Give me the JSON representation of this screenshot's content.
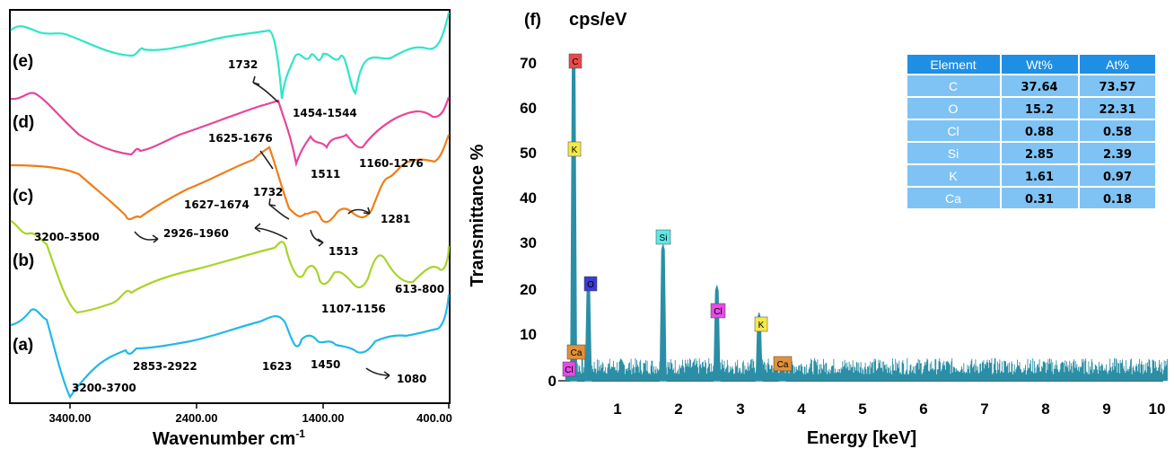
{
  "ftir": {
    "xlabel": "Wavenumber cm",
    "xlabel_sup": "-1",
    "ylabel": "Transmittance %",
    "xticks": [
      "3400.00",
      "2400.00",
      "1400.00",
      "400.00"
    ],
    "curves": [
      {
        "label": "(e)",
        "color": "#2ee6c8"
      },
      {
        "label": "(d)",
        "color": "#e8449a"
      },
      {
        "label": "(c)",
        "color": "#f07d17"
      },
      {
        "label": "(b)",
        "color": "#a8d42a"
      },
      {
        "label": "(a)",
        "color": "#22b8e8"
      }
    ],
    "annotations": [
      "1732",
      "1454-1544",
      "1625-1676",
      "1511",
      "1160-1276",
      "1732",
      "1627–1674",
      "3200–3500",
      "2926–1960",
      "1513",
      "1281",
      "613-800",
      "1107-1156",
      "2853-2922",
      "1623",
      "1450",
      "1080",
      "3200-3700"
    ]
  },
  "eds": {
    "panel_label": "(f)",
    "ylabel_top": "cps/eV",
    "xlabel": "Energy [keV]",
    "table": {
      "headers": [
        "Element",
        "Wt%",
        "At%"
      ],
      "rows": [
        [
          "C",
          "37.64",
          "73.57"
        ],
        [
          "O",
          "15.2",
          "22.31"
        ],
        [
          "Cl",
          "0.88",
          "0.58"
        ],
        [
          "Si",
          "2.85",
          "2.39"
        ],
        [
          "K",
          "1.61",
          "0.97"
        ],
        [
          "Ca",
          "0.31",
          "0.18"
        ]
      ]
    },
    "peak_labels": [
      "C",
      "K",
      "Si",
      "O",
      "Cl",
      "K",
      "Ca",
      "Cl",
      "Ca"
    ],
    "colors": {
      "spectrum": "#2a8fa6",
      "table_header": "#1f8fe6",
      "table_row": "#7fc3f5"
    }
  },
  "chart_data": [
    {
      "type": "line",
      "title": "",
      "xlabel": "Wavenumber cm-1",
      "ylabel": "Transmittance %",
      "xlim": [
        4000,
        400
      ],
      "x_reversed": true,
      "series": [
        {
          "name": "(e)",
          "x": [
            4000,
            3400,
            2900,
            2400,
            1800,
            1750,
            1700,
            1650,
            1500,
            1300,
            1200,
            1000,
            800,
            400
          ],
          "y": [
            88,
            88,
            86,
            86,
            96,
            70,
            80,
            80,
            78,
            76,
            80,
            78,
            74,
            90
          ]
        },
        {
          "name": "(d)",
          "x": [
            4000,
            3400,
            2900,
            2400,
            1800,
            1732,
            1650,
            1500,
            1300,
            1200,
            1000,
            800,
            400
          ],
          "y": [
            68,
            58,
            50,
            58,
            66,
            60,
            54,
            52,
            54,
            48,
            54,
            64,
            66
          ]
        },
        {
          "name": "(c)",
          "x": [
            4000,
            3400,
            2900,
            2400,
            1800,
            1732,
            1650,
            1513,
            1281,
            1000,
            800,
            400
          ],
          "y": [
            42,
            42,
            32,
            40,
            52,
            38,
            26,
            24,
            26,
            40,
            48,
            52
          ]
        },
        {
          "name": "(b)",
          "x": [
            4000,
            3400,
            2900,
            2400,
            1800,
            1650,
            1500,
            1300,
            1130,
            800,
            613,
            400
          ],
          "y": [
            34,
            20,
            22,
            28,
            34,
            10,
            18,
            12,
            8,
            18,
            10,
            28
          ]
        },
        {
          "name": "(a)",
          "x": [
            4000,
            3400,
            2900,
            2400,
            1800,
            1623,
            1450,
            1300,
            1080,
            800,
            400
          ],
          "y": [
            12,
            -6,
            2,
            4,
            10,
            -2,
            2,
            4,
            0,
            4,
            18
          ]
        }
      ]
    },
    {
      "type": "bar",
      "title": "",
      "xlabel": "Energy [keV]",
      "ylabel": "cps/eV",
      "xlim": [
        0,
        10
      ],
      "ylim": [
        0,
        75
      ],
      "xticks": [
        1,
        2,
        3,
        4,
        5,
        6,
        7,
        8,
        9,
        10
      ],
      "yticks": [
        0,
        10,
        20,
        30,
        40,
        50,
        60,
        70
      ],
      "peaks": [
        {
          "label": "C",
          "energy": 0.28,
          "value": 72
        },
        {
          "label": "O",
          "energy": 0.52,
          "value": 21
        },
        {
          "label": "Si",
          "energy": 1.74,
          "value": 30
        },
        {
          "label": "Cl",
          "energy": 2.62,
          "value": 21
        },
        {
          "label": "K",
          "energy": 3.31,
          "value": 15
        },
        {
          "label": "Ca",
          "energy": 3.69,
          "value": 4
        }
      ],
      "noise_level": 4
    }
  ]
}
